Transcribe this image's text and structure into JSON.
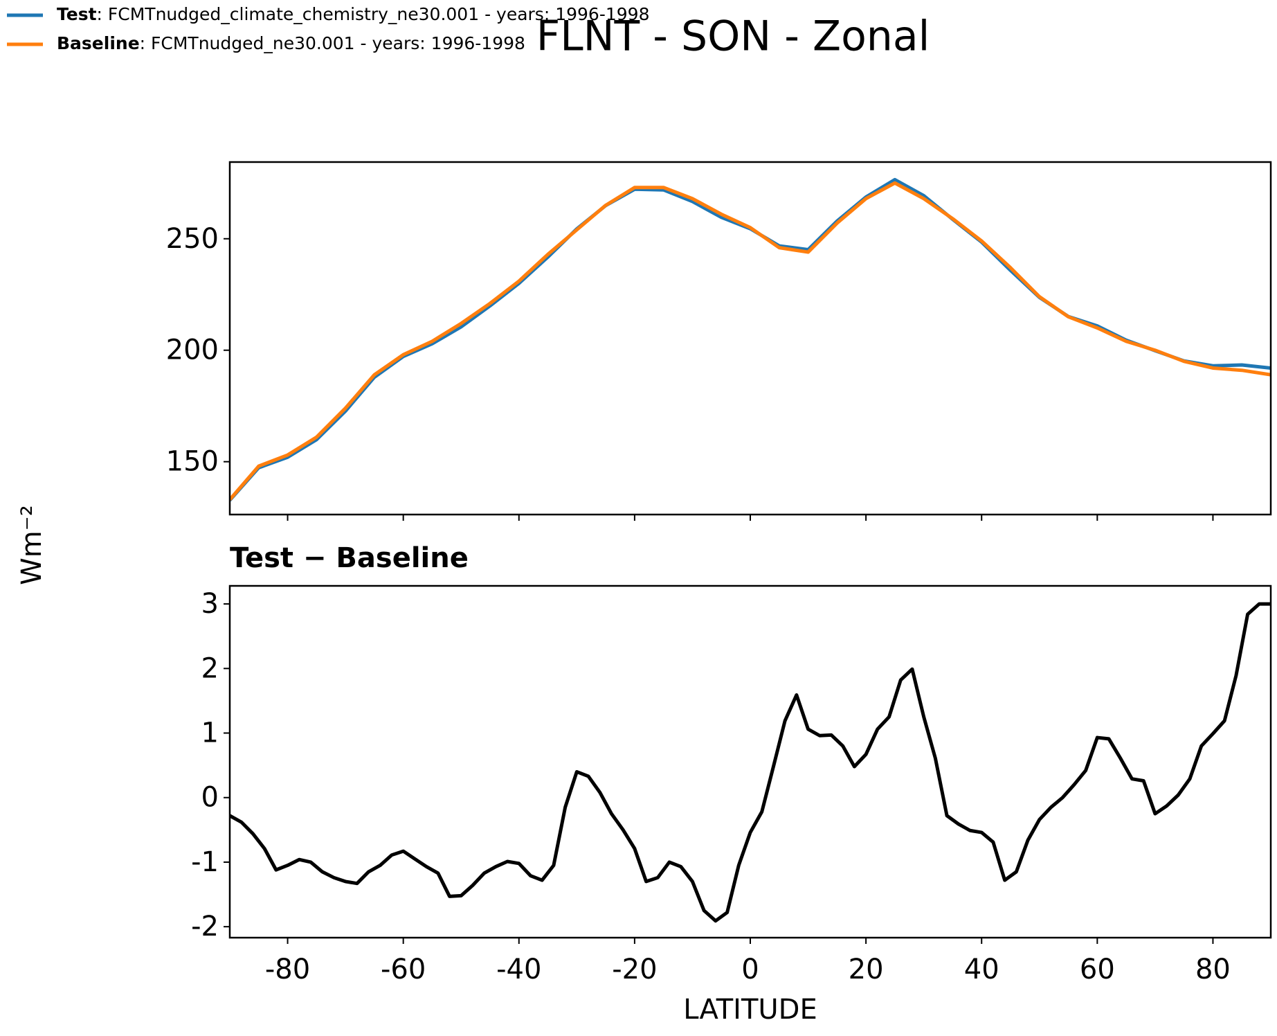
{
  "chart_data": [
    {
      "type": "line",
      "title": "FLNT - SON - Zonal",
      "ylabel": "Wm⁻²",
      "legend": "figure upper left",
      "x": [
        -90,
        -85,
        -80,
        -75,
        -70,
        -65,
        -60,
        -55,
        -50,
        -45,
        -40,
        -35,
        -30,
        -25,
        -20,
        -15,
        -10,
        -5,
        0,
        5,
        10,
        15,
        20,
        25,
        30,
        35,
        40,
        45,
        50,
        55,
        60,
        65,
        70,
        75,
        80,
        85,
        90
      ],
      "series": [
        {
          "name": "Test",
          "description": ": FCMTnudged_climate_chemistry_ne30.001 - years: 1996-1998",
          "color": "#1f77b4",
          "values": [
            132.7,
            147.3,
            152,
            159.9,
            172.7,
            187.9,
            197.2,
            202.9,
            210.5,
            219.9,
            230,
            241.8,
            254.4,
            264.9,
            272.2,
            271.9,
            266.7,
            259.6,
            254.5,
            246.8,
            245.1,
            257.9,
            268.7,
            276.5,
            269.3,
            258.7,
            248.5,
            235.8,
            223.7,
            215.1,
            210.9,
            204.5,
            199.8,
            195.2,
            193,
            193.4,
            192
          ]
        },
        {
          "name": "Baseline",
          "description": ": FCMTnudged_ne30.001 - years: 1996-1998",
          "color": "#ff7f0e",
          "values": [
            133,
            148,
            153,
            161,
            174,
            189,
            198,
            204,
            212,
            221,
            231,
            243,
            254,
            265,
            273,
            273,
            268,
            261,
            255,
            246,
            244,
            257,
            268,
            275,
            268,
            259,
            249,
            237,
            224,
            215,
            210,
            204,
            200,
            195,
            192,
            191,
            189
          ]
        }
      ],
      "xlim": [
        -90,
        90
      ],
      "xticks": [
        -80,
        -60,
        -40,
        -20,
        0,
        20,
        40,
        60,
        80
      ],
      "xtick_labels": false,
      "ylim": [
        126.3,
        284.4
      ],
      "yticks": [
        150,
        200,
        250
      ],
      "grid": false
    },
    {
      "type": "line",
      "title": "Test − Baseline",
      "xlabel": "LATITUDE",
      "x": [
        -90,
        -88,
        -86,
        -84,
        -82,
        -80,
        -78,
        -76,
        -74,
        -72,
        -70,
        -68,
        -66,
        -64,
        -62,
        -60,
        -58,
        -56,
        -54,
        -52,
        -50,
        -48,
        -46,
        -44,
        -42,
        -40,
        -38,
        -36,
        -34,
        -32,
        -30,
        -28,
        -26,
        -24,
        -22,
        -20,
        -18,
        -16,
        -14,
        -12,
        -10,
        -8,
        -6,
        -4,
        -2,
        0,
        2,
        4,
        6,
        8,
        10,
        12,
        14,
        16,
        18,
        20,
        22,
        24,
        26,
        28,
        30,
        32,
        34,
        36,
        38,
        40,
        42,
        44,
        46,
        48,
        50,
        52,
        54,
        56,
        58,
        60,
        62,
        64,
        66,
        68,
        70,
        72,
        74,
        76,
        78,
        80,
        82,
        84,
        86,
        88,
        90
      ],
      "series": [
        {
          "color": "#000000",
          "values": [
            -0.28,
            -0.38,
            -0.56,
            -0.79,
            -1.12,
            -1.05,
            -0.96,
            -1.0,
            -1.15,
            -1.24,
            -1.3,
            -1.33,
            -1.15,
            -1.05,
            -0.89,
            -0.83,
            -0.95,
            -1.07,
            -1.17,
            -1.53,
            -1.52,
            -1.36,
            -1.17,
            -1.07,
            -0.99,
            -1.02,
            -1.21,
            -1.28,
            -1.05,
            -0.15,
            0.4,
            0.33,
            0.08,
            -0.25,
            -0.5,
            -0.79,
            -1.3,
            -1.24,
            -1.0,
            -1.07,
            -1.3,
            -1.75,
            -1.91,
            -1.78,
            -1.05,
            -0.54,
            -0.22,
            0.48,
            1.19,
            1.59,
            1.06,
            0.96,
            0.97,
            0.8,
            0.48,
            0.67,
            1.06,
            1.25,
            1.82,
            1.99,
            1.25,
            0.61,
            -0.28,
            -0.41,
            -0.51,
            -0.54,
            -0.69,
            -1.28,
            -1.15,
            -0.66,
            -0.34,
            -0.15,
            0.0,
            0.2,
            0.42,
            0.93,
            0.91,
            0.61,
            0.29,
            0.26,
            -0.25,
            -0.13,
            0.04,
            0.29,
            0.8,
            0.99,
            1.19,
            1.89,
            2.84,
            3.0,
            3.0
          ]
        }
      ],
      "xlim": [
        -90,
        90
      ],
      "xticks": [
        -80,
        -60,
        -40,
        -20,
        0,
        20,
        40,
        60,
        80
      ],
      "xtick_labels": true,
      "ylim": [
        -2.17,
        3.28
      ],
      "yticks": [
        -2,
        -1,
        0,
        1,
        2,
        3
      ],
      "grid": false
    }
  ]
}
